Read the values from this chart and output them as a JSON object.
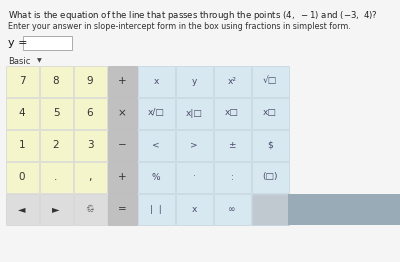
{
  "bg_color": "#ebebeb",
  "content_bg": "#f5f5f5",
  "title_line1": "What is the equation of the line that passes through the points ",
  "title_math": "(4,  − 1)  and  (−3,  4)?",
  "subtitle": "Enter your answer in slope-intercept form in the box using fractions in simplest form.",
  "y_label": "y =",
  "basic_label": "Basic",
  "yellow_bg": "#f5f5cc",
  "gray_bg": "#c8c8c8",
  "blue_light": "#d8e8f0",
  "blue_dark_last": "#b8ccd8",
  "cell_border": "#cccccc",
  "num_pad": [
    [
      "7",
      "8",
      "9"
    ],
    [
      "4",
      "5",
      "6"
    ],
    [
      "1",
      "2",
      "3"
    ],
    [
      "0",
      ".",
      ","
    ]
  ],
  "bottom_pad": [
    "◄",
    "►",
    "♲"
  ],
  "op_col": [
    "+",
    "×",
    "−",
    "+",
    "="
  ],
  "sym_rows": [
    [
      "x",
      "y",
      "x²",
      "√□"
    ],
    [
      "x/□",
      "x|□",
      "x□",
      "x□"
    ],
    [
      "<",
      ">",
      "±",
      "$"
    ],
    [
      "%",
      "·",
      ":",
      "(□)"
    ],
    [
      "|  |",
      "x",
      "∞",
      ""
    ]
  ]
}
